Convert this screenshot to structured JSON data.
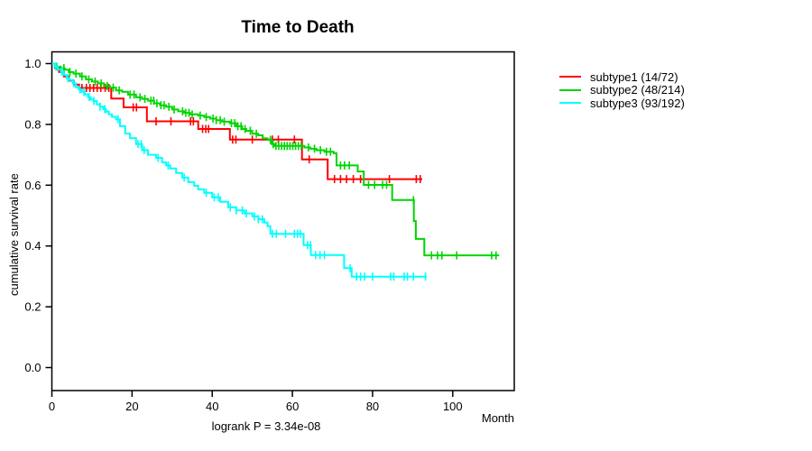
{
  "chart_data": {
    "type": "line",
    "subtype": "kaplan-meier-step",
    "title": "Time to Death",
    "xlabel": "Month",
    "ylabel": "cumulative survival rate",
    "footnote": "logrank P = 3.34e-08",
    "xlim": [
      0,
      115.3
    ],
    "ylim": [
      0.0,
      1.0
    ],
    "x_ticks": [
      0,
      20,
      40,
      60,
      80,
      100
    ],
    "y_ticks": [
      0.0,
      0.2,
      0.4,
      0.6,
      0.8,
      1.0
    ],
    "grid": false,
    "frame": "box",
    "legend_position": "right-outside",
    "axis_color": "#000000",
    "series": [
      {
        "name": "subtype1",
        "legend_label": "subtype1 (14/72)",
        "color": "#FF0000",
        "steps": [
          [
            0,
            1.0
          ],
          [
            0.8,
            0.986
          ],
          [
            1.8,
            0.972
          ],
          [
            3,
            0.958
          ],
          [
            4.2,
            0.944
          ],
          [
            5.5,
            0.931
          ],
          [
            6.8,
            0.92
          ],
          [
            14.8,
            0.885
          ],
          [
            17.9,
            0.856
          ],
          [
            23.7,
            0.81
          ],
          [
            36.5,
            0.785
          ],
          [
            44.4,
            0.75
          ],
          [
            62.4,
            0.685
          ],
          [
            68.8,
            0.62
          ],
          [
            92.4,
            0.62
          ]
        ],
        "censor_months": [
          7.5,
          8.6,
          9.5,
          10.4,
          11.3,
          12.2,
          13.3,
          14.2,
          20.3,
          21.1,
          26,
          29.7,
          34.6,
          35.3,
          37.6,
          38.4,
          39.1,
          45.1,
          45.9,
          50,
          55,
          56.5,
          60.5,
          64.2,
          70.5,
          72,
          73.5,
          75.2,
          77,
          84.2,
          90.9,
          91.9
        ]
      },
      {
        "name": "subtype2",
        "legend_label": "subtype2 (48/214)",
        "color": "#00D500",
        "steps": [
          [
            0,
            1.0
          ],
          [
            1,
            0.99
          ],
          [
            2.2,
            0.985
          ],
          [
            3.2,
            0.98
          ],
          [
            4.2,
            0.972
          ],
          [
            5.4,
            0.967
          ],
          [
            7,
            0.958
          ],
          [
            8.5,
            0.948
          ],
          [
            10,
            0.941
          ],
          [
            11.5,
            0.935
          ],
          [
            13,
            0.926
          ],
          [
            14.5,
            0.921
          ],
          [
            16,
            0.912
          ],
          [
            17.5,
            0.907
          ],
          [
            19,
            0.898
          ],
          [
            21,
            0.889
          ],
          [
            22.5,
            0.884
          ],
          [
            24,
            0.878
          ],
          [
            25.5,
            0.869
          ],
          [
            27,
            0.863
          ],
          [
            28.5,
            0.858
          ],
          [
            30,
            0.849
          ],
          [
            31.5,
            0.843
          ],
          [
            33,
            0.838
          ],
          [
            34.5,
            0.833
          ],
          [
            36.5,
            0.829
          ],
          [
            38,
            0.824
          ],
          [
            39.5,
            0.819
          ],
          [
            41,
            0.814
          ],
          [
            42.5,
            0.809
          ],
          [
            44.4,
            0.804
          ],
          [
            46,
            0.794
          ],
          [
            47.5,
            0.785
          ],
          [
            48.5,
            0.779
          ],
          [
            50,
            0.769
          ],
          [
            51.5,
            0.764
          ],
          [
            52.6,
            0.754
          ],
          [
            53.8,
            0.749
          ],
          [
            54.8,
            0.735
          ],
          [
            55.6,
            0.729
          ],
          [
            63,
            0.724
          ],
          [
            64.5,
            0.72
          ],
          [
            66,
            0.715
          ],
          [
            68,
            0.71
          ],
          [
            70.3,
            0.705
          ],
          [
            71,
            0.665
          ],
          [
            76.3,
            0.645
          ],
          [
            77.8,
            0.601
          ],
          [
            84.9,
            0.551
          ],
          [
            90.3,
            0.482
          ],
          [
            90.8,
            0.423
          ],
          [
            92.9,
            0.369
          ],
          [
            111.6,
            0.369
          ]
        ],
        "censor_months": [
          1.2,
          3,
          4.5,
          6,
          7.5,
          9.2,
          10.8,
          12.3,
          13.8,
          15.3,
          16.8,
          19.5,
          20.5,
          22,
          23.2,
          24.7,
          25.4,
          26.2,
          27.2,
          28,
          29.2,
          30.5,
          32.6,
          33.4,
          34.2,
          35,
          37,
          38.5,
          40.2,
          41,
          42,
          43,
          44.8,
          45.6,
          46.4,
          47.2,
          48.2,
          49.5,
          51,
          54.5,
          55.2,
          55.9,
          56.6,
          57.3,
          58,
          58.7,
          59.4,
          60.1,
          60.8,
          61.5,
          62.2,
          64,
          65.5,
          67,
          68.5,
          69.5,
          72,
          73,
          74.2,
          79,
          80.5,
          82.5,
          83.5,
          90.2,
          94.7,
          96.2,
          97.3,
          101,
          109.7,
          110.8
        ]
      },
      {
        "name": "subtype3",
        "legend_label": "subtype3 (93/192)",
        "color": "#00FFFF",
        "steps": [
          [
            0,
            1.0
          ],
          [
            0.7,
            0.99
          ],
          [
            1.5,
            0.981
          ],
          [
            2.2,
            0.973
          ],
          [
            3,
            0.962
          ],
          [
            3.7,
            0.952
          ],
          [
            4.4,
            0.946
          ],
          [
            5.2,
            0.935
          ],
          [
            6,
            0.922
          ],
          [
            6.7,
            0.915
          ],
          [
            7.4,
            0.907
          ],
          [
            8.2,
            0.899
          ],
          [
            9,
            0.89
          ],
          [
            9.7,
            0.882
          ],
          [
            10.4,
            0.877
          ],
          [
            11.2,
            0.866
          ],
          [
            12,
            0.858
          ],
          [
            12.8,
            0.85
          ],
          [
            13.5,
            0.842
          ],
          [
            14.2,
            0.833
          ],
          [
            15,
            0.825
          ],
          [
            16,
            0.817
          ],
          [
            17,
            0.794
          ],
          [
            18.3,
            0.77
          ],
          [
            19.5,
            0.755
          ],
          [
            21,
            0.735
          ],
          [
            22.5,
            0.715
          ],
          [
            24,
            0.7
          ],
          [
            26,
            0.69
          ],
          [
            27.5,
            0.675
          ],
          [
            28.5,
            0.665
          ],
          [
            29.5,
            0.655
          ],
          [
            31,
            0.64
          ],
          [
            32.5,
            0.625
          ],
          [
            34,
            0.61
          ],
          [
            35.5,
            0.598
          ],
          [
            36.5,
            0.586
          ],
          [
            38,
            0.575
          ],
          [
            40,
            0.56
          ],
          [
            42,
            0.545
          ],
          [
            44,
            0.527
          ],
          [
            46,
            0.517
          ],
          [
            48,
            0.507
          ],
          [
            50,
            0.497
          ],
          [
            51.5,
            0.488
          ],
          [
            53,
            0.477
          ],
          [
            53.8,
            0.465
          ],
          [
            54.5,
            0.44
          ],
          [
            62.8,
            0.403
          ],
          [
            64.6,
            0.37
          ],
          [
            72.9,
            0.327
          ],
          [
            74.8,
            0.299
          ],
          [
            93.5,
            0.299
          ]
        ],
        "censor_months": [
          1,
          2.5,
          4,
          5.5,
          7,
          8,
          9.3,
          10.5,
          12,
          13.2,
          16.5,
          21.5,
          22.3,
          23,
          26.5,
          29,
          33,
          38.5,
          40.5,
          41.5,
          44.5,
          46,
          47.5,
          48.5,
          50.5,
          51.5,
          52.5,
          55,
          56,
          58.3,
          60.5,
          61.3,
          62,
          63.8,
          64.5,
          65.8,
          66.9,
          68,
          74.4,
          76,
          77,
          78,
          80,
          84.5,
          85.3,
          87.9,
          88.7,
          90.2,
          93.2
        ]
      }
    ]
  }
}
